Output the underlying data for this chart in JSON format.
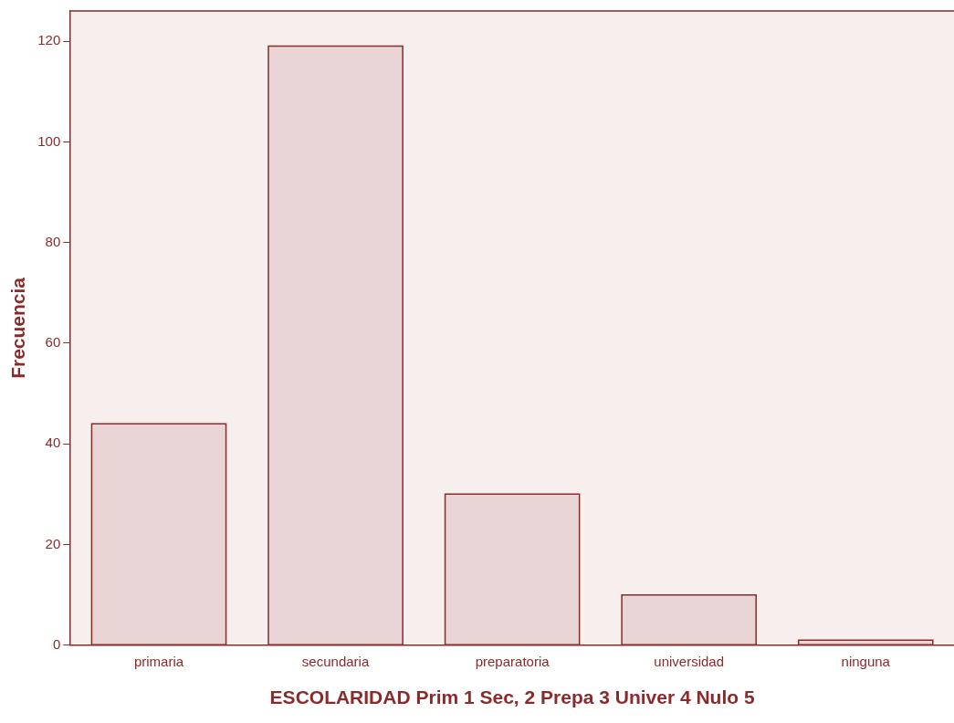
{
  "chart_data": {
    "type": "bar",
    "xlabel": "ESCOLARIDAD Prim 1 Sec, 2 Prepa 3 Univer 4 Nulo 5",
    "ylabel": "Frecuencia",
    "categories": [
      "primaria",
      "secundaria",
      "preparatoria",
      "universidad",
      "ninguna"
    ],
    "values": [
      44,
      119,
      30,
      10,
      1
    ],
    "color": "#ead5d6",
    "ylim": [
      0,
      126
    ],
    "yticks": [
      0,
      20,
      40,
      60,
      80,
      100,
      120
    ],
    "grid": false,
    "legend": false
  }
}
